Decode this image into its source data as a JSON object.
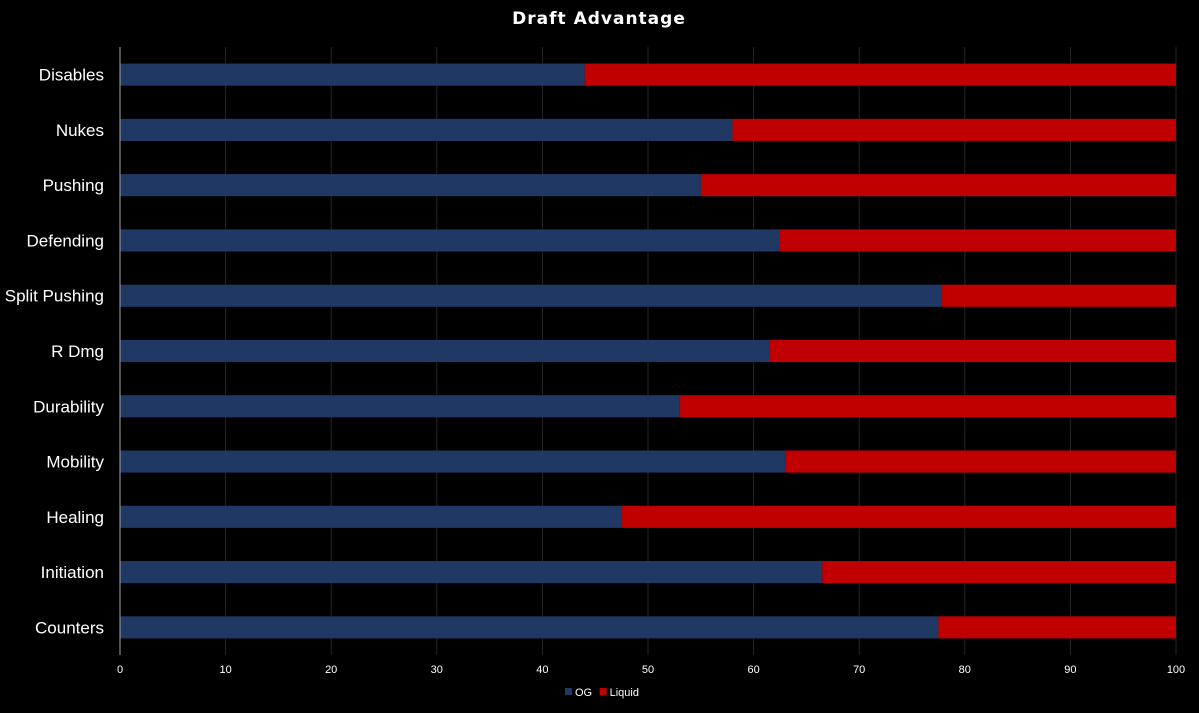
{
  "chart_data": {
    "type": "bar",
    "orientation": "horizontal",
    "stacked": true,
    "title": "Draft Advantage",
    "xlabel": "",
    "ylabel": "",
    "xlim": [
      0,
      100
    ],
    "x_ticks": [
      0,
      10,
      20,
      30,
      40,
      50,
      60,
      70,
      80,
      90,
      100
    ],
    "grid": "vertical",
    "legend_position": "bottom",
    "categories": [
      "Disables",
      "Nukes",
      "Pushing",
      "Defending",
      "Split Pushing",
      "R Dmg",
      "Durability",
      "Mobility",
      "Healing",
      "Initiation",
      "Counters"
    ],
    "series": [
      {
        "name": "OG",
        "color": "#1f3864",
        "values": [
          44,
          58,
          55,
          62.5,
          77.8,
          61.5,
          53,
          63,
          47.5,
          66.5,
          77.5
        ]
      },
      {
        "name": "Liquid",
        "color": "#c00000",
        "values": [
          56,
          42,
          45,
          37.5,
          22.2,
          38.5,
          47,
          37,
          52.5,
          33.5,
          22.5
        ]
      }
    ]
  }
}
